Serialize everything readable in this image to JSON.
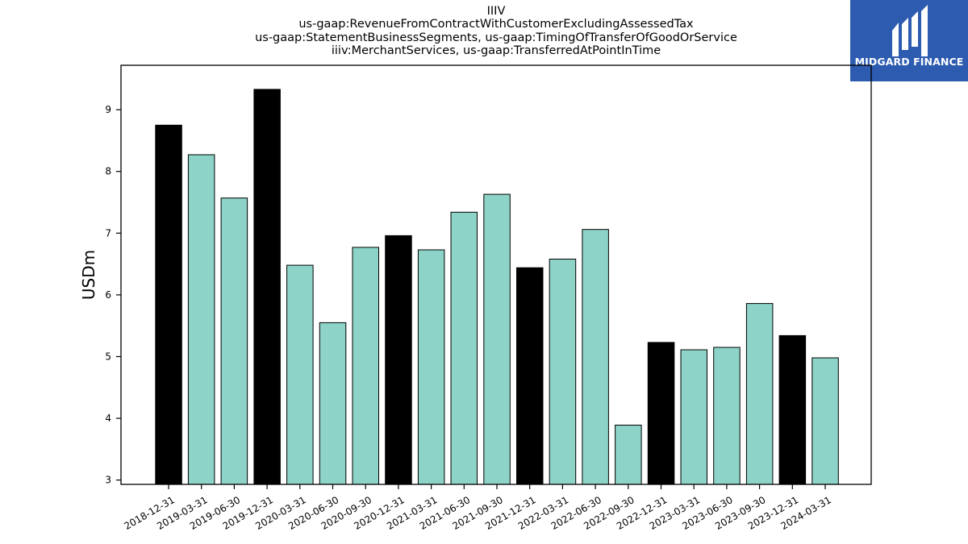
{
  "header": {
    "titles": [
      "IIIV",
      "us-gaap:RevenueFromContractWithCustomerExcludingAssessedTax",
      "us-gaap:StatementBusinessSegments, us-gaap:TimingOfTransferOfGoodOrService",
      "iiiv:MerchantServices, us-gaap:TransferredAtPointInTime"
    ]
  },
  "logo": {
    "text": "MIDGARD FINANCE",
    "icon": "midgard-m-logo",
    "background": "#2c5bb0"
  },
  "chart_data": {
    "type": "bar",
    "title": "IIIV",
    "ylabel": "USDm",
    "xlabel": "",
    "ylim": [
      2.93,
      9.72
    ],
    "yticks": [
      3,
      4,
      5,
      6,
      7,
      8,
      9
    ],
    "grid": false,
    "categories": [
      "2018-12-31",
      "2019-03-31",
      "2019-06-30",
      "2019-12-31",
      "2020-03-31",
      "2020-06-30",
      "2020-09-30",
      "2020-12-31",
      "2021-03-31",
      "2021-06-30",
      "2021-09-30",
      "2021-12-31",
      "2022-03-31",
      "2022-06-30",
      "2022-09-30",
      "2022-12-31",
      "2023-03-31",
      "2023-06-30",
      "2023-09-30",
      "2023-12-31",
      "2024-03-31"
    ],
    "values": [
      8.75,
      8.27,
      7.57,
      9.33,
      6.48,
      5.55,
      6.77,
      6.96,
      6.73,
      7.34,
      7.63,
      6.44,
      6.58,
      7.06,
      3.89,
      5.23,
      5.11,
      5.15,
      5.86,
      5.34,
      4.98
    ],
    "highlight": [
      true,
      false,
      false,
      true,
      false,
      false,
      false,
      true,
      false,
      false,
      false,
      true,
      false,
      false,
      false,
      true,
      false,
      false,
      false,
      true,
      false
    ],
    "colors": {
      "default": "#8dd3c7",
      "highlight": "#000000",
      "edge": "#000000"
    }
  }
}
